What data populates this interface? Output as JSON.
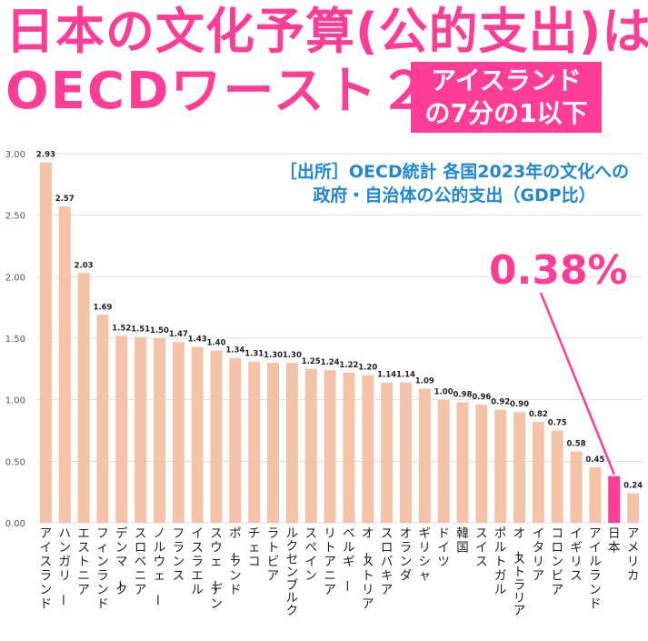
{
  "title": {
    "line1": "日本の文化予算(公的支出)は",
    "line2": "OECDワースト２"
  },
  "badge": {
    "line1": "アイスランド",
    "line2": "の7分の1以下"
  },
  "source": {
    "line1": "［出所］OECD統計 各国2023年の文化への",
    "line2": "政府・自治体の公的支出（GDP比）"
  },
  "callout": "0.38%",
  "colors": {
    "bar": "#f5c4a8",
    "highlight": "#ff3d97",
    "grid": "#dddddd",
    "source_text": "#1f88d6"
  },
  "chart_data": {
    "type": "bar",
    "categories": [
      "アイスランド",
      "ハンガリー",
      "エストニア",
      "フィンランド",
      "デンマーク",
      "スロベニア",
      "ノルウェー",
      "フランス",
      "イスラエル",
      "スウェーデン",
      "ポーランド",
      "チェコ",
      "ラトビア",
      "ルクセンブルク",
      "スペイン",
      "リトアニア",
      "ベルギー",
      "オーストリア",
      "スロバキア",
      "オランダ",
      "ギリシャ",
      "ドイツ",
      "韓国",
      "スイス",
      "ポルトガル",
      "オーストラリア",
      "イタリア",
      "コロンビア",
      "イギリス",
      "アイルランド",
      "日本",
      "アメリカ"
    ],
    "values": [
      2.93,
      2.57,
      2.03,
      1.69,
      1.52,
      1.51,
      1.5,
      1.47,
      1.43,
      1.4,
      1.34,
      1.31,
      1.3,
      1.3,
      1.25,
      1.24,
      1.22,
      1.2,
      1.14,
      1.14,
      1.09,
      1.0,
      0.98,
      0.96,
      0.92,
      0.9,
      0.82,
      0.75,
      0.58,
      0.45,
      0.38,
      0.24
    ],
    "value_labels": [
      "2.93",
      "2.57",
      "2.03",
      "1.69",
      "1.52",
      "1.51",
      "1.50",
      "1.47",
      "1.43",
      "1.40",
      "1.34",
      "1.31",
      "1.30",
      "1.30",
      "1.25",
      "1.24",
      "1.22",
      "1.20",
      "1.14",
      "1.14",
      "1.09",
      "1.00",
      "0.98",
      "0.96",
      "0.92",
      "0.90",
      "0.82",
      "0.75",
      "0.58",
      "0.45",
      "",
      "0.24"
    ],
    "highlight_category": "日本",
    "yticks": [
      0.0,
      0.5,
      1.0,
      1.5,
      2.0,
      2.5,
      3.0
    ],
    "ytick_labels": [
      "0.00",
      "0.50",
      "1.00",
      "1.50",
      "2.00",
      "2.50",
      "3.00"
    ],
    "ylim": [
      0,
      3.0
    ],
    "grid": true,
    "xlabel": "",
    "ylabel": ""
  }
}
